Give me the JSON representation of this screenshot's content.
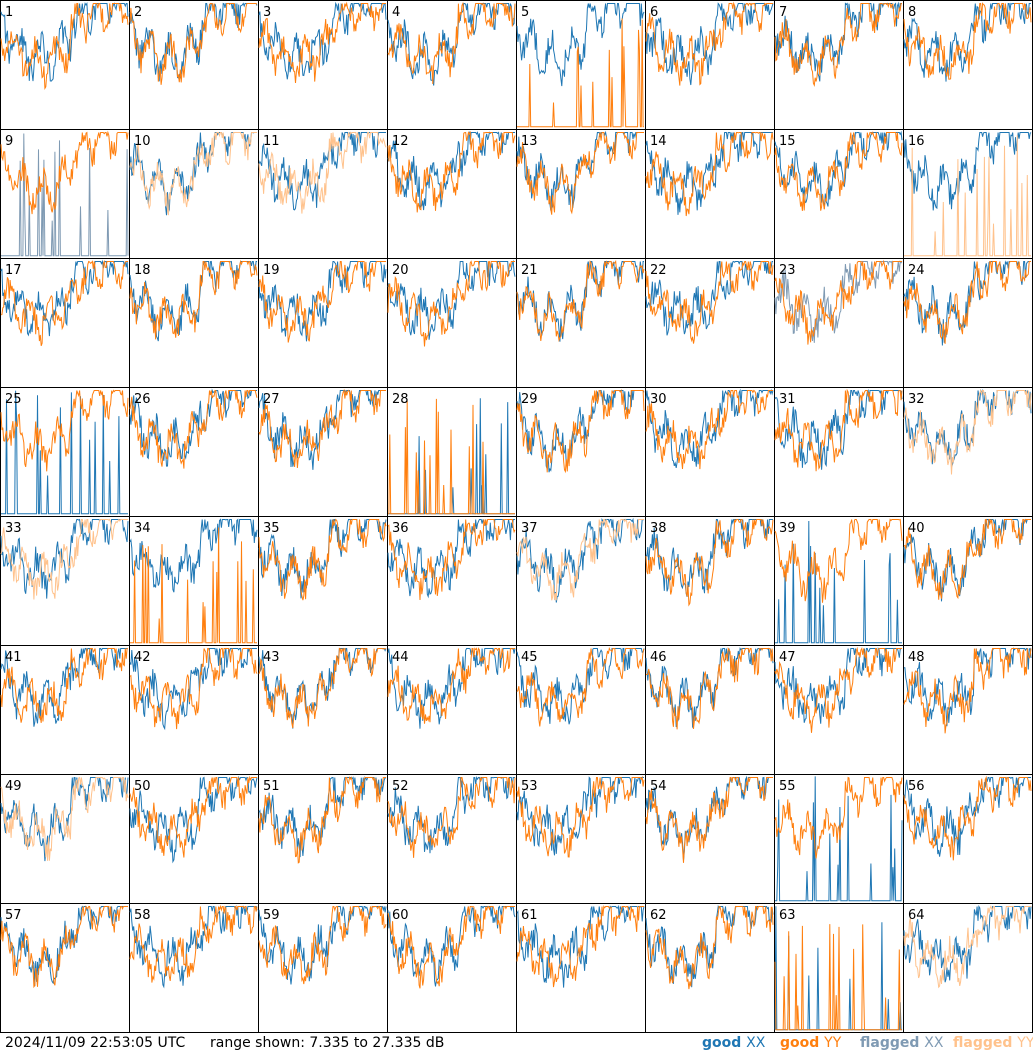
{
  "chart_data": {
    "type": "line",
    "layout": "small-multiples 8x8",
    "y_unit": "dB",
    "ylim": [
      7.335,
      27.335
    ],
    "panels": [
      "1",
      "2",
      "3",
      "4",
      "5",
      "6",
      "7",
      "8",
      "9",
      "10",
      "11",
      "12",
      "13",
      "14",
      "15",
      "16",
      "17",
      "18",
      "19",
      "20",
      "21",
      "22",
      "23",
      "24",
      "25",
      "26",
      "27",
      "28",
      "29",
      "30",
      "31",
      "32",
      "33",
      "34",
      "35",
      "36",
      "37",
      "38",
      "39",
      "40",
      "41",
      "42",
      "43",
      "44",
      "45",
      "46",
      "47",
      "48",
      "49",
      "50",
      "51",
      "52",
      "53",
      "54",
      "55",
      "56",
      "57",
      "58",
      "59",
      "60",
      "61",
      "62",
      "63",
      "64"
    ],
    "flagged_xx": [
      9,
      23
    ],
    "flagged_yy": [
      10,
      11,
      16,
      32,
      33,
      37,
      49,
      64
    ],
    "legend": [
      {
        "label": "good",
        "pol": "XX",
        "color": "#1f77b4"
      },
      {
        "label": "good",
        "pol": "YY",
        "color": "#ff7f0e"
      },
      {
        "label": "flagged",
        "pol": "XX",
        "color": "#7f9ab3"
      },
      {
        "label": "flagged",
        "pol": "YY",
        "color": "#ffc28c"
      }
    ]
  },
  "footer": {
    "timestamp": "2024/11/09 22:53:05 UTC",
    "range_text": "range shown: 7.335 to 27.335 dB"
  }
}
